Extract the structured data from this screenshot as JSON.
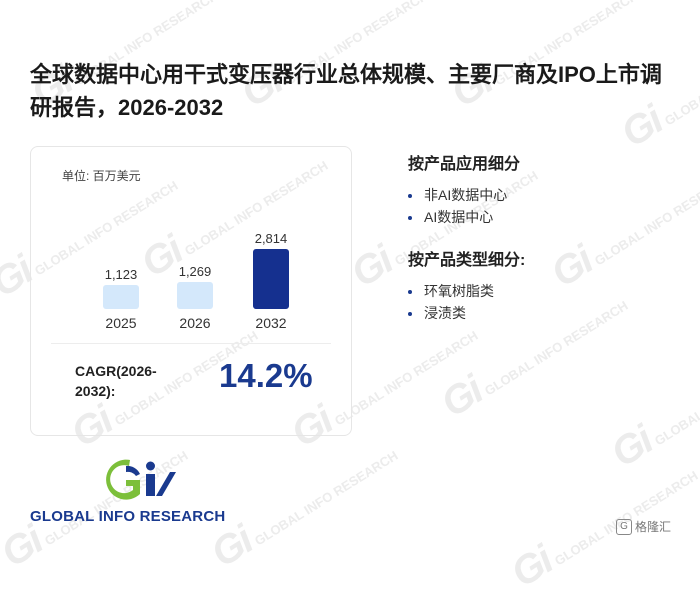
{
  "title": "全球数据中心用干式变压器行业总体规模、主要厂商及IPO上市调研报告，2026-2032",
  "card": {
    "unit_label": "单位: 百万美元",
    "cagr_label": "CAGR(2026-2032):",
    "cagr_value": "14.2%"
  },
  "chart_data": {
    "type": "bar",
    "categories": [
      "2025",
      "2026",
      "2032"
    ],
    "values": [
      1123,
      1269,
      2814
    ],
    "value_labels": [
      "1,123",
      "1,269",
      "2,814"
    ],
    "title": "",
    "xlabel": "",
    "ylabel": "",
    "unit": "百万美元",
    "grid": false,
    "colors": [
      "#d4e8fb",
      "#d4e8fb",
      "#15308f"
    ]
  },
  "segments": [
    {
      "heading": "按产品应用细分",
      "items": [
        "非AI数据中心",
        "AI数据中心"
      ]
    },
    {
      "heading": "按产品类型细分:",
      "items": [
        "环氧树脂类",
        "浸渍类"
      ]
    }
  ],
  "logo": {
    "text": "GLOBAL INFO RESEARCH",
    "mark": "Gi",
    "watermark_text": "GLOBAL INFO RESEARCH"
  },
  "corner": {
    "text": "格隆汇",
    "icon": "gelonghui-icon"
  }
}
